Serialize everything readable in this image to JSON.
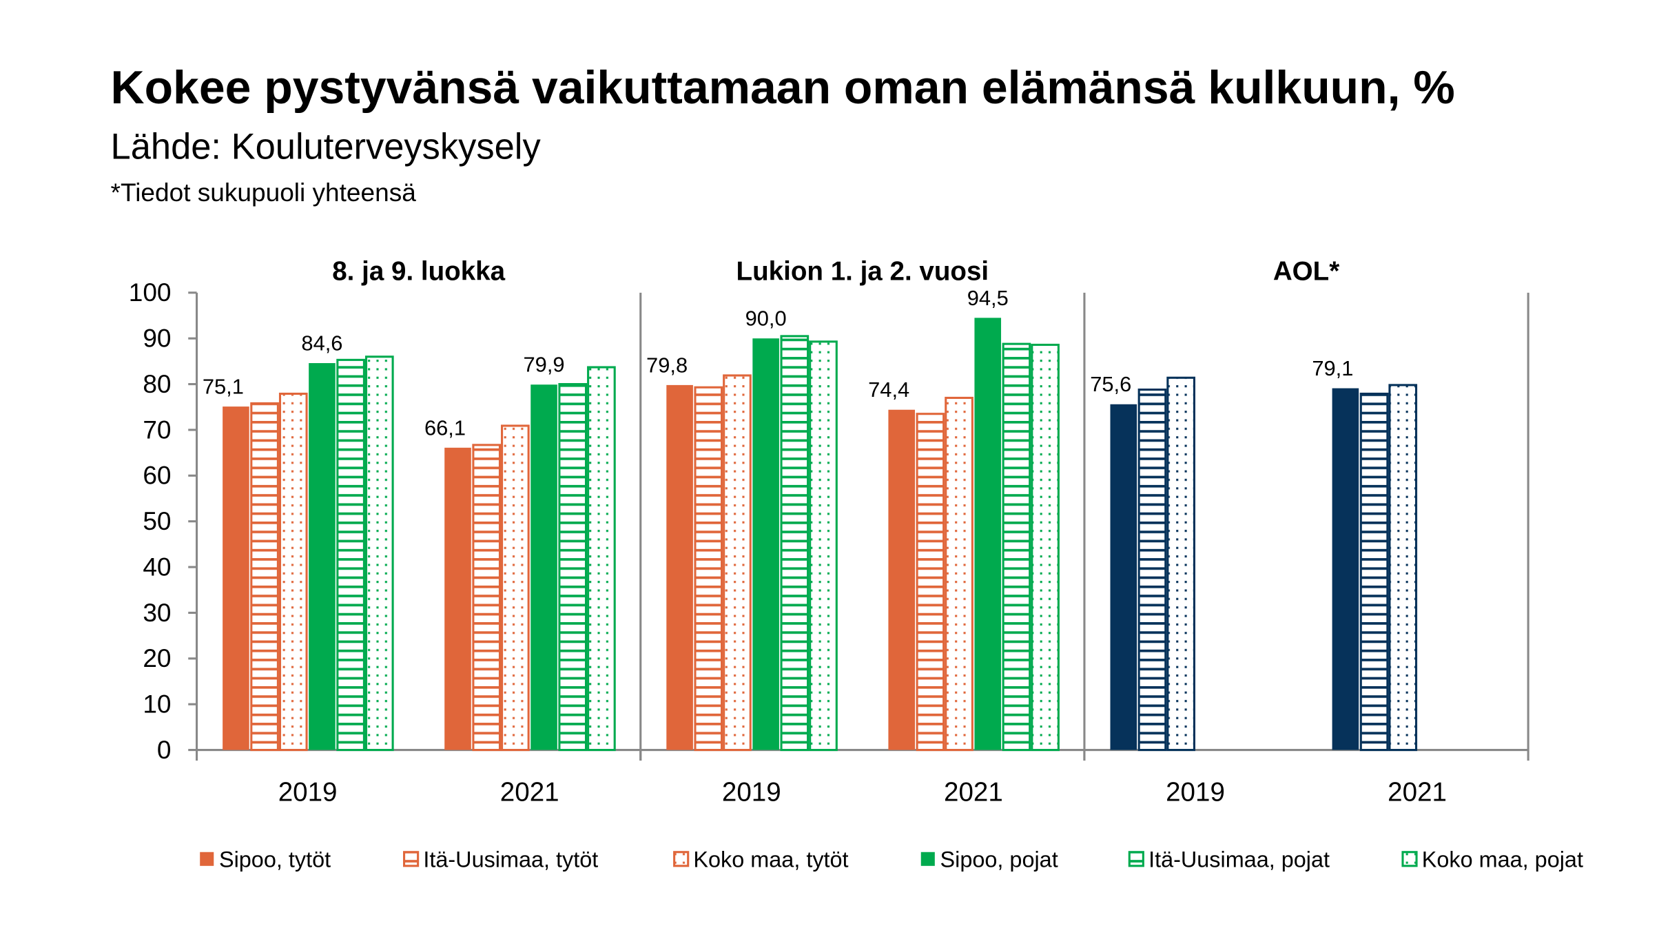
{
  "chart_data": {
    "type": "bar",
    "title": "Kokee pystyvänsä vaikuttamaan oman elämänsä kulkuun, %",
    "subtitle": "Lähde: Kouluterveyskysely",
    "note": "*Tiedot sukupuoli yhteensä",
    "ylim": [
      0,
      100
    ],
    "yticks": [
      "0",
      "10",
      "20",
      "30",
      "40",
      "50",
      "60",
      "70",
      "80",
      "90",
      "100"
    ],
    "grid": false,
    "legend_position": "bottom",
    "panels": [
      {
        "title": "8. ja 9. luokka",
        "categories": [
          "2019",
          "2021"
        ],
        "series": [
          {
            "name": "Sipoo, tytöt",
            "values": [
              75.1,
              66.1
            ],
            "labels": [
              "75,1",
              "66,1"
            ]
          },
          {
            "name": "Itä-Uusimaa, tytöt",
            "values": [
              75.8,
              66.7
            ]
          },
          {
            "name": "Koko maa, tytöt",
            "values": [
              77.9,
              70.9
            ]
          },
          {
            "name": "Sipoo, pojat",
            "values": [
              84.6,
              79.9
            ],
            "labels": [
              "84,6",
              "79,9"
            ]
          },
          {
            "name": "Itä-Uusimaa, pojat",
            "values": [
              85.3,
              80.0
            ]
          },
          {
            "name": "Koko maa, pojat",
            "values": [
              86.0,
              83.7
            ]
          }
        ]
      },
      {
        "title": "Lukion 1. ja 2. vuosi",
        "categories": [
          "2019",
          "2021"
        ],
        "series": [
          {
            "name": "Sipoo, tytöt",
            "values": [
              79.8,
              74.4
            ],
            "labels": [
              "79,8",
              "74,4"
            ]
          },
          {
            "name": "Itä-Uusimaa, tytöt",
            "values": [
              79.3,
              73.5
            ]
          },
          {
            "name": "Koko maa, tytöt",
            "values": [
              81.9,
              77.0
            ]
          },
          {
            "name": "Sipoo, pojat",
            "values": [
              90.0,
              94.5
            ],
            "labels": [
              "90,0",
              "94,5"
            ]
          },
          {
            "name": "Itä-Uusimaa, pojat",
            "values": [
              90.5,
              88.8
            ]
          },
          {
            "name": "Koko maa, pojat",
            "values": [
              89.3,
              88.6
            ]
          }
        ]
      },
      {
        "title": "AOL*",
        "categories": [
          "2019",
          "2021"
        ],
        "series": [
          {
            "name": "Sipoo",
            "values": [
              75.6,
              79.1
            ],
            "labels": [
              "75,6",
              "79,1"
            ]
          },
          {
            "name": "Itä-Uusimaa",
            "values": [
              78.8,
              77.9
            ]
          },
          {
            "name": "Koko maa",
            "values": [
              81.4,
              79.8
            ]
          }
        ]
      }
    ],
    "legend": [
      {
        "label": "Sipoo, tytöt",
        "color": "#E0663A",
        "pattern": "solid"
      },
      {
        "label": "Itä-Uusimaa, tytöt",
        "color": "#E0663A",
        "pattern": "stripes"
      },
      {
        "label": "Koko maa, tytöt",
        "color": "#E0663A",
        "pattern": "dots"
      },
      {
        "label": "Sipoo, pojat",
        "color": "#00AA4E",
        "pattern": "solid"
      },
      {
        "label": "Itä-Uusimaa, pojat",
        "color": "#00AA4E",
        "pattern": "stripes"
      },
      {
        "label": "Koko maa, pojat",
        "color": "#00AA4E",
        "pattern": "dots"
      }
    ],
    "colors": {
      "girls": "#E0663A",
      "boys": "#00AA4E",
      "aol": "#06325A",
      "axis": "#888888"
    }
  }
}
